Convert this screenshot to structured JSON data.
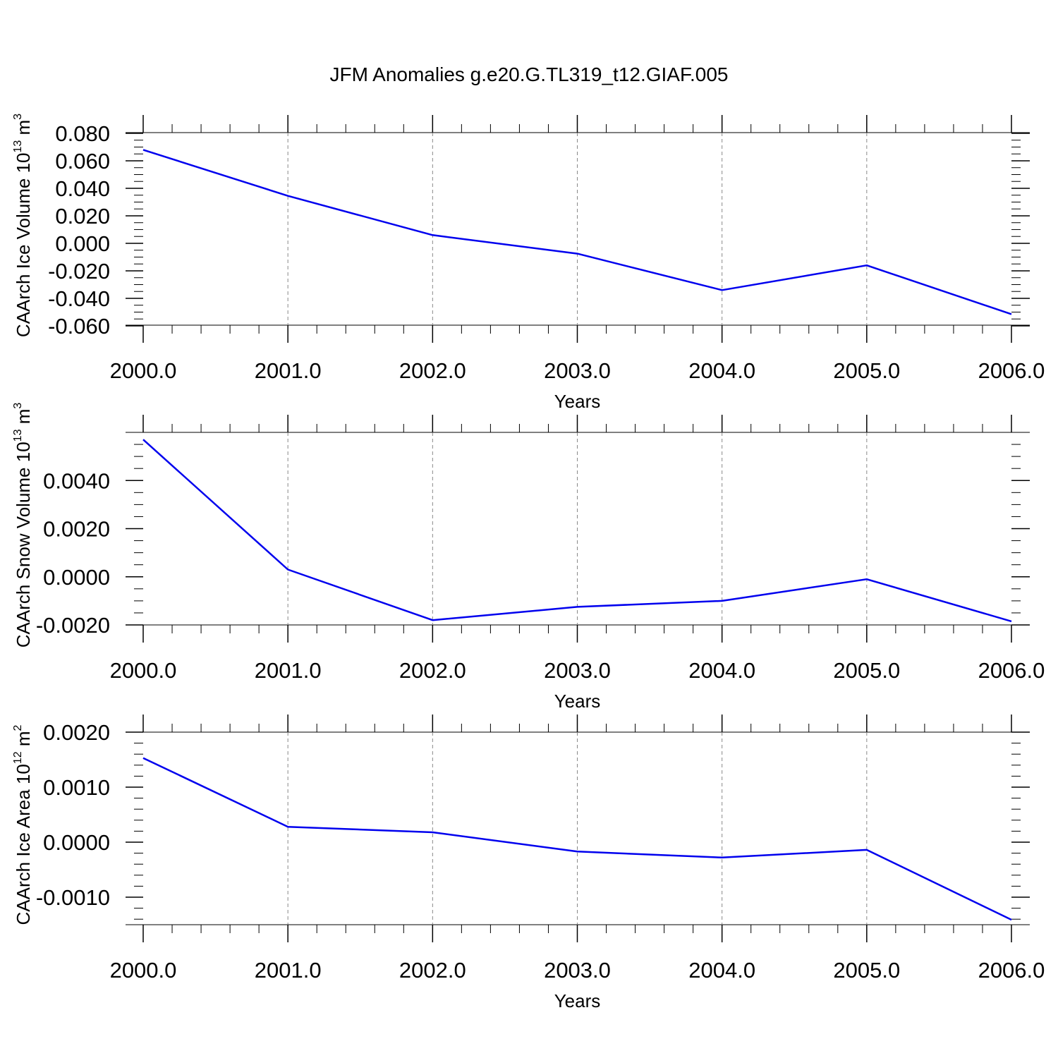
{
  "title": "JFM Anomalies g.e20.G.TL319_t12.GIAF.005",
  "chart_data": [
    {
      "type": "line",
      "title": "",
      "ylabel": {
        "main": "CAArch Ice Volume 10",
        "exp": "13",
        "unit": " m",
        "unit_exp": "3"
      },
      "xlabel": "Years",
      "x": [
        2000,
        2001,
        2002,
        2003,
        2004,
        2005,
        2006
      ],
      "xticks": [
        "2000.0",
        "2001.0",
        "2002.0",
        "2003.0",
        "2004.0",
        "2005.0",
        "2006.0"
      ],
      "xlim": [
        2000,
        2006
      ],
      "ylim": [
        -0.0595,
        0.0805
      ],
      "yticks": [
        0.08,
        0.06,
        0.04,
        0.02,
        0.0,
        -0.02,
        -0.04,
        -0.06
      ],
      "ytick_labels": [
        "0.080",
        "0.060",
        "0.040",
        "0.020",
        "0.000",
        "-0.020",
        "-0.040",
        "-0.060"
      ],
      "yminor_step": 0.005,
      "series": [
        {
          "name": "CAArch Ice Volume",
          "color": "#0000ee",
          "values": [
            0.068,
            0.0345,
            0.006,
            -0.0075,
            -0.034,
            -0.016,
            -0.0515
          ]
        }
      ]
    },
    {
      "type": "line",
      "title": "",
      "ylabel": {
        "main": "CAArch Snow Volume 10",
        "exp": "13",
        "unit": " m",
        "unit_exp": "3"
      },
      "xlabel": "Years",
      "x": [
        2000,
        2001,
        2002,
        2003,
        2004,
        2005,
        2006
      ],
      "xticks": [
        "2000.0",
        "2001.0",
        "2002.0",
        "2003.0",
        "2004.0",
        "2005.0",
        "2006.0"
      ],
      "xlim": [
        2000,
        2006
      ],
      "ylim": [
        -0.002,
        0.006
      ],
      "yticks": [
        0.004,
        0.002,
        0.0,
        -0.002
      ],
      "ytick_labels": [
        "0.0040",
        "0.0020",
        "0.0000",
        "-0.0020"
      ],
      "yminor_step": 0.0005,
      "series": [
        {
          "name": "CAArch Snow Volume",
          "color": "#0000ee",
          "values": [
            0.0057,
            0.0003,
            -0.0018,
            -0.00125,
            -0.001,
            -0.0001,
            -0.00185
          ]
        }
      ]
    },
    {
      "type": "line",
      "title": "",
      "ylabel": {
        "main": "CAArch Ice Area 10",
        "exp": "12",
        "unit": " m",
        "unit_exp": "2"
      },
      "xlabel": "Years",
      "x": [
        2000,
        2001,
        2002,
        2003,
        2004,
        2005,
        2006
      ],
      "xticks": [
        "2000.0",
        "2001.0",
        "2002.0",
        "2003.0",
        "2004.0",
        "2005.0",
        "2006.0"
      ],
      "xlim": [
        2000,
        2006
      ],
      "ylim": [
        -0.0015,
        0.002
      ],
      "yticks": [
        0.002,
        0.001,
        0.0,
        -0.001
      ],
      "ytick_labels": [
        "0.0020",
        "0.0010",
        "0.0000",
        "-0.0010"
      ],
      "yminor_step": 0.0002,
      "series": [
        {
          "name": "CAArch Ice Area",
          "color": "#0000ee",
          "values": [
            0.00153,
            0.00028,
            0.00018,
            -0.00017,
            -0.00028,
            -0.00014,
            -0.00141
          ]
        }
      ]
    }
  ]
}
